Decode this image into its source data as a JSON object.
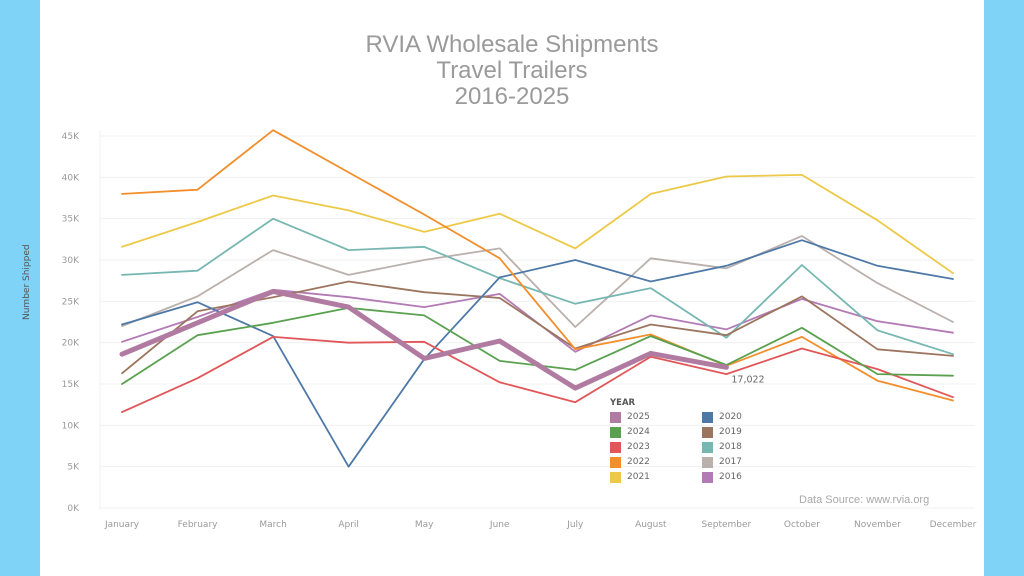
{
  "chart_data": {
    "type": "line",
    "title": [
      "RVIA Wholesale Shipments",
      "Travel Trailers",
      "2016-2025"
    ],
    "xlabel": "",
    "ylabel": "Number Shipped",
    "ylim": [
      0,
      45000
    ],
    "yticks": [
      0,
      5000,
      10000,
      15000,
      20000,
      25000,
      30000,
      35000,
      40000,
      45000
    ],
    "ytick_labels": [
      "0K",
      "5K",
      "10K",
      "15K",
      "20K",
      "25K",
      "30K",
      "35K",
      "40K",
      "45K"
    ],
    "grid": true,
    "categories": [
      "January",
      "February",
      "March",
      "April",
      "May",
      "June",
      "July",
      "August",
      "September",
      "October",
      "November",
      "December"
    ],
    "legend_title": "YEAR",
    "legend_position": "bottom-center",
    "series": [
      {
        "name": "2016",
        "color": "#b37bb5",
        "emphasis": false,
        "values": [
          20100,
          23100,
          26400,
          25500,
          24300,
          25900,
          18900,
          23300,
          21600,
          25300,
          22600,
          21200
        ]
      },
      {
        "name": "2017",
        "color": "#bab0ac",
        "emphasis": false,
        "values": [
          22000,
          25600,
          31200,
          28200,
          30000,
          31400,
          21900,
          30200,
          29000,
          32900,
          27200,
          22500
        ]
      },
      {
        "name": "2018",
        "color": "#76b7b2",
        "emphasis": false,
        "values": [
          28200,
          28700,
          35000,
          31200,
          31600,
          27800,
          24700,
          26600,
          20600,
          29400,
          21500,
          18600
        ]
      },
      {
        "name": "2019",
        "color": "#9c755f",
        "emphasis": false,
        "values": [
          16300,
          23800,
          25500,
          27400,
          26100,
          25400,
          19300,
          22200,
          20900,
          25600,
          19200,
          18400
        ]
      },
      {
        "name": "2020",
        "color": "#4e79a7",
        "emphasis": false,
        "values": [
          22200,
          24900,
          20800,
          5000,
          18000,
          27900,
          30000,
          27400,
          29300,
          32400,
          29300,
          27700
        ]
      },
      {
        "name": "2021",
        "color": "#edc948",
        "emphasis": false,
        "values": [
          31600,
          34600,
          37800,
          36000,
          33400,
          35600,
          31400,
          38000,
          40100,
          40300,
          34800,
          28400
        ]
      },
      {
        "name": "2022",
        "color": "#f28e2b",
        "emphasis": false,
        "values": [
          38000,
          38500,
          45700,
          40600,
          35500,
          30200,
          19200,
          21000,
          17200,
          20700,
          15400,
          13000
        ]
      },
      {
        "name": "2023",
        "color": "#e15759",
        "emphasis": false,
        "values": [
          11600,
          15700,
          20700,
          20000,
          20100,
          15200,
          12800,
          18300,
          16200,
          19300,
          16800,
          13400
        ]
      },
      {
        "name": "2024",
        "color": "#59a14f",
        "emphasis": false,
        "values": [
          15000,
          20900,
          22400,
          24200,
          23300,
          17800,
          16700,
          20800,
          17300,
          21800,
          16200,
          16000
        ]
      },
      {
        "name": "2025",
        "color": "#b07aa1",
        "emphasis": true,
        "values": [
          18600,
          22400,
          26200,
          24300,
          18100,
          20200,
          14500,
          18700,
          17022,
          null,
          null,
          null
        ]
      }
    ],
    "legend_order": [
      "2025",
      "2024",
      "2023",
      "2022",
      "2021",
      "2020",
      "2019",
      "2018",
      "2017",
      "2016"
    ],
    "annotations": [
      {
        "series": "2025",
        "category": "September",
        "text": "17,022"
      }
    ],
    "source_note": "Data Source: www.rvia.org"
  }
}
